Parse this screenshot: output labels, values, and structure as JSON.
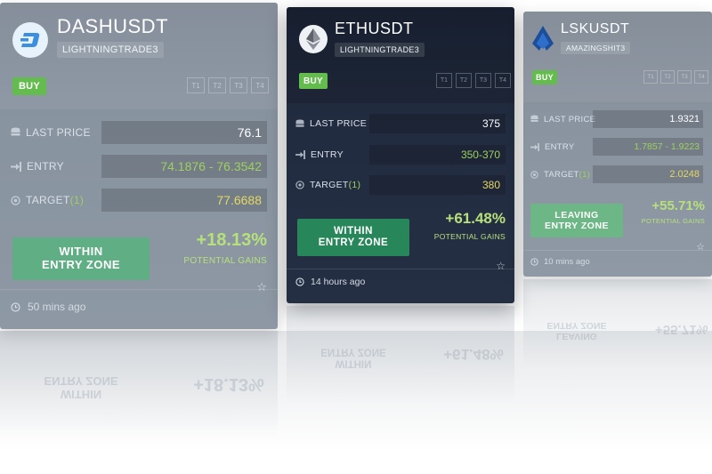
{
  "cards": [
    {
      "pair": "DASHUSDT",
      "trader": "LIGHTNINGTRADE3",
      "buy_label": "BUY",
      "tabs": [
        "T1",
        "T2",
        "T3",
        "T4"
      ],
      "last_price_label": "LAST PRICE",
      "last_price": "76.1",
      "entry_label": "ENTRY",
      "entry": "74.1876 - 76.3542",
      "target_label": "TARGET",
      "target_count": "(1)",
      "target": "77.6688",
      "zone_line1": "WITHIN",
      "zone_line2": "ENTRY ZONE",
      "gain_pct": "+18.13%",
      "gain_label": "POTENTIAL GAINS",
      "time": "50 mins ago",
      "icon": "dash-coin-icon"
    },
    {
      "pair": "ETHUSDT",
      "trader": "LIGHTNINGTRADE3",
      "buy_label": "BUY",
      "tabs": [
        "T1",
        "T2",
        "T3",
        "T4"
      ],
      "last_price_label": "LAST PRICE",
      "last_price": "375",
      "entry_label": "ENTRY",
      "entry": "350-370",
      "target_label": "TARGET",
      "target_count": "(1)",
      "target": "380",
      "zone_line1": "WITHIN",
      "zone_line2": "ENTRY ZONE",
      "gain_pct": "+61.48%",
      "gain_label": "POTENTIAL GAINS",
      "time": "14 hours ago",
      "icon": "ethereum-coin-icon"
    },
    {
      "pair": "LSKUSDT",
      "trader": "AMAZINGSHIT3",
      "buy_label": "BUY",
      "tabs": [
        "T1",
        "T2",
        "T3",
        "T4"
      ],
      "last_price_label": "LAST PRICE",
      "last_price": "1.9321",
      "entry_label": "ENTRY",
      "entry": "1.7857 - 1.9223",
      "target_label": "TARGET",
      "target_count": "(1)",
      "target": "2.0248",
      "zone_line1": "LEAVING",
      "zone_line2": "ENTRY ZONE",
      "gain_pct": "+55.71%",
      "gain_label": "POTENTIAL GAINS",
      "time": "10 mins ago",
      "icon": "lisk-coin-icon"
    }
  ],
  "colors": {
    "buy": "#64bb4e",
    "gain": "#b7e07c",
    "entry_value": "#9dd05f",
    "target_value": "#e3d764",
    "zone_button_dark": "#27875a",
    "zone_button_light": "#5fae84"
  }
}
